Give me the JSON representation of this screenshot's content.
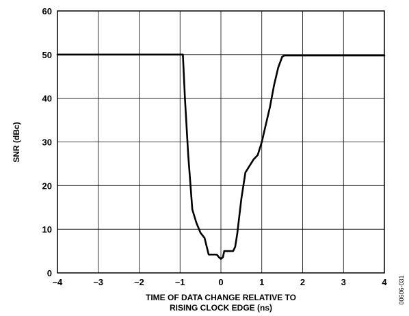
{
  "chart_data": {
    "type": "line",
    "title": "",
    "xlabel_lines": [
      "TIME OF DATA CHANGE RELATIVE TO",
      "RISING CLOCK EDGE (ns)"
    ],
    "ylabel": "SNR (dBc)",
    "xlim": [
      -4,
      4
    ],
    "ylim": [
      0,
      60
    ],
    "x_ticks": [
      -4,
      -3,
      -2,
      -1,
      0,
      1,
      2,
      3,
      4
    ],
    "x_tick_labels": [
      "–4",
      "–3",
      "–2",
      "–1",
      "0",
      "1",
      "2",
      "3",
      "4"
    ],
    "y_ticks": [
      0,
      10,
      20,
      30,
      40,
      50,
      60
    ],
    "y_tick_labels": [
      "0",
      "10",
      "20",
      "30",
      "40",
      "50",
      "60"
    ],
    "grid": true,
    "line_color": "#000000",
    "series": [
      {
        "x": [
          -4.0,
          -0.93,
          -0.88,
          -0.8,
          -0.7,
          -0.6,
          -0.5,
          -0.4,
          -0.3,
          -0.2,
          -0.1,
          -0.05,
          0.0,
          0.05,
          0.08,
          0.15,
          0.3,
          0.35,
          0.4,
          0.45,
          0.5,
          0.6,
          0.7,
          0.8,
          0.9,
          1.0,
          1.1,
          1.2,
          1.3,
          1.35,
          1.4,
          1.5,
          1.55,
          4.0
        ],
        "y": [
          50.0,
          50.0,
          40.0,
          27.0,
          14.5,
          11.5,
          9.2,
          8.0,
          4.2,
          4.2,
          4.2,
          3.6,
          3.2,
          3.6,
          5.0,
          5.0,
          5.0,
          6.0,
          9.0,
          13.0,
          17.0,
          23.0,
          24.5,
          26.0,
          27.0,
          30.0,
          34.0,
          38.0,
          43.0,
          45.0,
          47.0,
          49.5,
          49.8,
          49.8
        ]
      }
    ]
  },
  "figure_id": "00606-031"
}
